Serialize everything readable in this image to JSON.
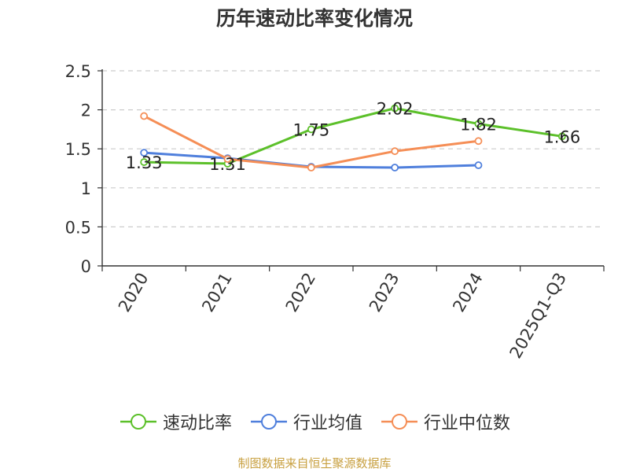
{
  "chart_data": {
    "type": "line",
    "title": "历年速动比率变化情况",
    "categories": [
      "2020",
      "2021",
      "2022",
      "2023",
      "2024",
      "2025Q1-Q3"
    ],
    "ylim": [
      0,
      2.5
    ],
    "yticks": [
      "0",
      "0.5",
      "1",
      "1.5",
      "2",
      "2.5"
    ],
    "grid": true,
    "legend_position": "bottom",
    "series": [
      {
        "name": "速动比率",
        "color": "#5cc02a",
        "values": [
          1.33,
          1.31,
          1.75,
          2.02,
          1.82,
          1.66
        ],
        "labels": [
          "1.33",
          "1.31",
          "1.75",
          "2.02",
          "1.82",
          "1.66"
        ]
      },
      {
        "name": "行业均值",
        "color": "#4f7fdc",
        "values": [
          1.45,
          1.38,
          1.27,
          1.26,
          1.29,
          null
        ]
      },
      {
        "name": "行业中位数",
        "color": "#f58e56",
        "values": [
          1.92,
          1.37,
          1.26,
          1.47,
          1.6,
          null
        ]
      }
    ]
  },
  "source": "制图数据来自恒生聚源数据库"
}
